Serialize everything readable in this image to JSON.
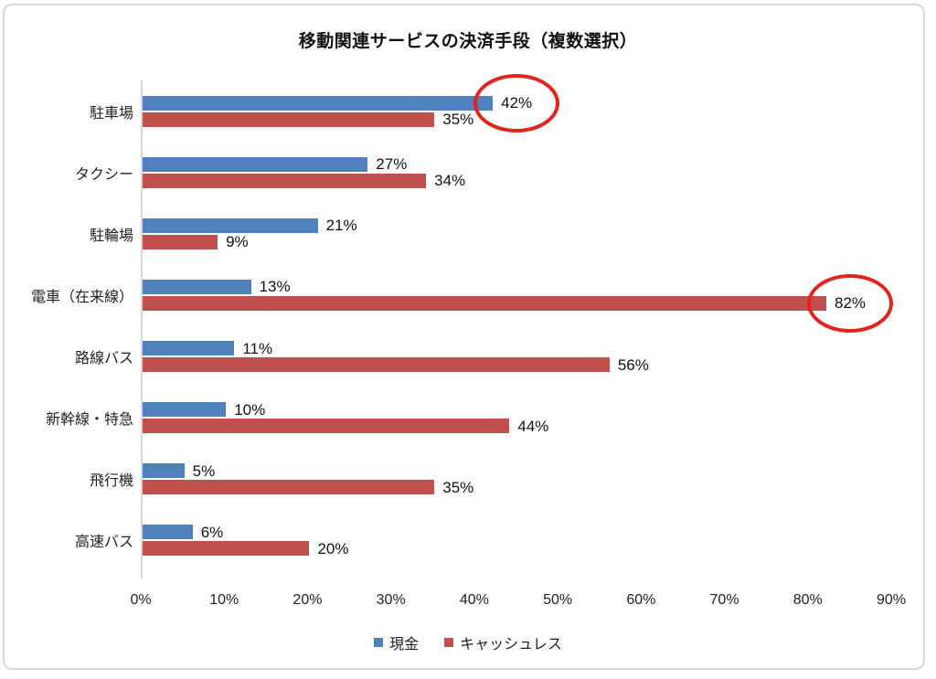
{
  "chart_data": {
    "type": "bar",
    "orientation": "horizontal",
    "title": "移動関連サービスの決済手段（複数選択）",
    "categories": [
      "駐車場",
      "タクシー",
      "駐輪場",
      "電車（在来線）",
      "路線バス",
      "新幹線・特急",
      "飛行機",
      "高速バス"
    ],
    "series": [
      {
        "name": "現金",
        "color": "#4F81BD",
        "values": [
          42,
          27,
          21,
          13,
          11,
          10,
          5,
          6
        ]
      },
      {
        "name": "キャッシュレス",
        "color": "#C0504D",
        "values": [
          35,
          34,
          9,
          82,
          56,
          44,
          35,
          20
        ]
      }
    ],
    "value_suffix": "%",
    "xlim": [
      0,
      90
    ],
    "x_ticks": [
      "0%",
      "10%",
      "20%",
      "30%",
      "40%",
      "50%",
      "60%",
      "70%",
      "80%",
      "90%"
    ],
    "grid": false,
    "legend_position": "bottom",
    "annotations": [
      {
        "series": "現金",
        "series_index": 0,
        "category": "駐車場",
        "category_index": 0,
        "label": "42%",
        "shape": "red-ellipse"
      },
      {
        "series": "キャッシュレス",
        "series_index": 1,
        "category": "電車（在来線）",
        "category_index": 3,
        "label": "82%",
        "shape": "red-ellipse"
      }
    ],
    "annotation_color": "#E2251B",
    "axis_line_color": "#D6D6D6",
    "frame_border_color": "#D8D8D8"
  }
}
